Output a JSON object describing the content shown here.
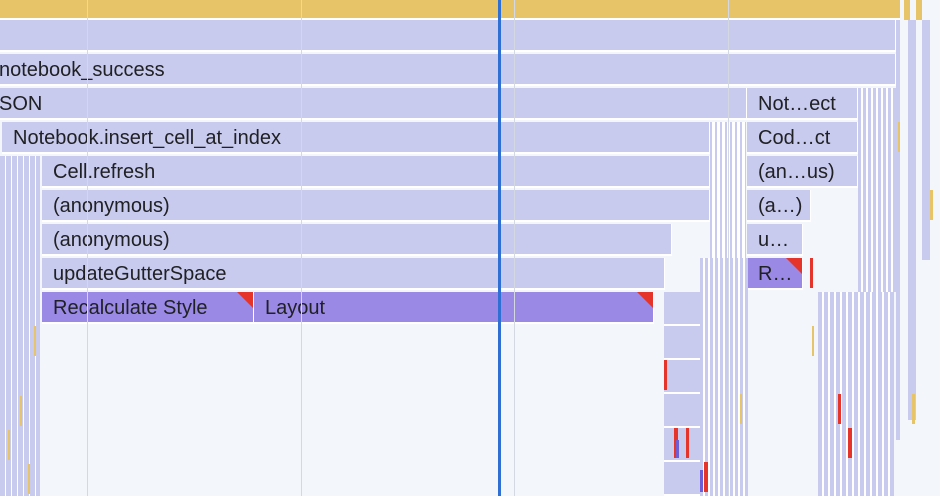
{
  "flame_chart": {
    "labels": {
      "notebook_success": "notebook_success",
      "json": "SON",
      "insert_cell": "Notebook.insert_cell_at_index",
      "cell_refresh": "Cell.refresh",
      "anonymous_1": "(anonymous)",
      "anonymous_2": "(anonymous)",
      "update_gutter": "updateGutterSpace",
      "recalc_style": "Recalculate Style",
      "layout": "Layout",
      "not_ect": "Not…ect",
      "cod_ct": "Cod…ct",
      "an_us": "(an…us)",
      "a_paren": "(a…)",
      "u_dots": "u…",
      "r_dots": "R…"
    },
    "colors": {
      "background": "#f3f6fb",
      "top_bar": "#e8c469",
      "frame": "#c8cbee",
      "highlighted_frame": "#9b89e6",
      "warning_marker": "#e5342a",
      "cursor": "#2f6fd4"
    }
  }
}
